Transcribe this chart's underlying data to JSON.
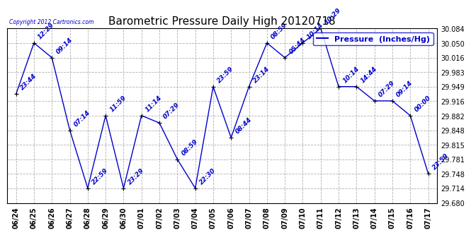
{
  "title": "Barometric Pressure Daily High 20120718",
  "copyright": "Copyright 2012 Cartronics.com",
  "legend_label": "Pressure  (Inches/Hg)",
  "x_labels": [
    "06/24",
    "06/25",
    "06/26",
    "06/27",
    "06/28",
    "06/29",
    "06/30",
    "07/01",
    "07/02",
    "07/03",
    "07/04",
    "07/05",
    "07/06",
    "07/07",
    "07/08",
    "07/09",
    "07/10",
    "07/11",
    "07/12",
    "07/13",
    "07/14",
    "07/15",
    "07/16",
    "07/17"
  ],
  "y_values": [
    29.932,
    30.05,
    30.016,
    29.848,
    29.714,
    29.882,
    29.714,
    29.882,
    29.865,
    29.781,
    29.714,
    29.949,
    29.831,
    29.949,
    30.05,
    30.016,
    30.05,
    30.084,
    29.949,
    29.949,
    29.916,
    29.916,
    29.882,
    29.748
  ],
  "time_labels": [
    "23:44",
    "12:29",
    "09:14",
    "07:14",
    "22:59",
    "11:59",
    "23:29",
    "11:14",
    "07:29",
    "08:59",
    "22:30",
    "23:59",
    "08:44",
    "23:14",
    "08:59",
    "05:44",
    "10:14",
    "10:29",
    "10:14",
    "14:44",
    "07:29",
    "09:14",
    "00:00",
    "23:59"
  ],
  "line_color": "#0000cc",
  "marker_color": "#000000",
  "background_color": "#ffffff",
  "grid_color": "#b0b0b0",
  "ylim": [
    29.68,
    30.084
  ],
  "yticks": [
    29.68,
    29.714,
    29.748,
    29.781,
    29.815,
    29.848,
    29.882,
    29.916,
    29.949,
    29.983,
    30.016,
    30.05,
    30.084
  ],
  "title_fontsize": 11,
  "tick_fontsize": 7,
  "label_fontsize": 6.5,
  "legend_fontsize": 8
}
